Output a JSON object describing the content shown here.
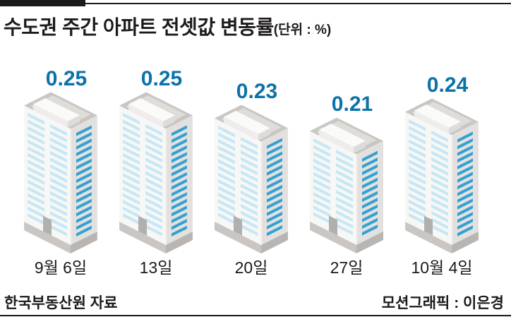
{
  "header": {
    "title": "수도권 주간 아파트 전셋값 변동률",
    "unit_note": "(단위 : %)"
  },
  "chart_data": {
    "type": "bar",
    "style": "isometric-building pictogram, one building per week",
    "title": "수도권 주간 아파트 전셋값 변동률",
    "unit": "%",
    "categories": [
      "9월 6일",
      "13일",
      "20일",
      "27일",
      "10월 4일"
    ],
    "values": [
      0.25,
      0.25,
      0.23,
      0.21,
      0.24
    ],
    "value_labels": [
      "0.25",
      "0.25",
      "0.23",
      "0.21",
      "0.24"
    ],
    "ylim": [
      0,
      0.27
    ],
    "value_label_color": "#0d72a8",
    "legend": "none",
    "grid": "off"
  },
  "footer": {
    "source": "한국부동산원 자료",
    "credit": "모션그래픽 : 이은경"
  },
  "palette": {
    "rule_black": "#1d1b1a",
    "value_blue": "#0d72a8",
    "left_face": "#f7f7f5",
    "right_face": "#e3e1e0",
    "window_light": "#c6e7f5",
    "window_dark": "#35a1d1",
    "roof_rim": "#c9c6c3",
    "roof_inner": "#dfddda",
    "plinth_left": "#c9c6c3",
    "plinth_right": "#b8b5b2",
    "door": "#b2afad",
    "rooftop_box_top": "#fafaf9",
    "rooftop_box_left": "#efedeb",
    "rooftop_box_right": "#dedcda",
    "ridge_highlight": "#f5f4f3"
  }
}
